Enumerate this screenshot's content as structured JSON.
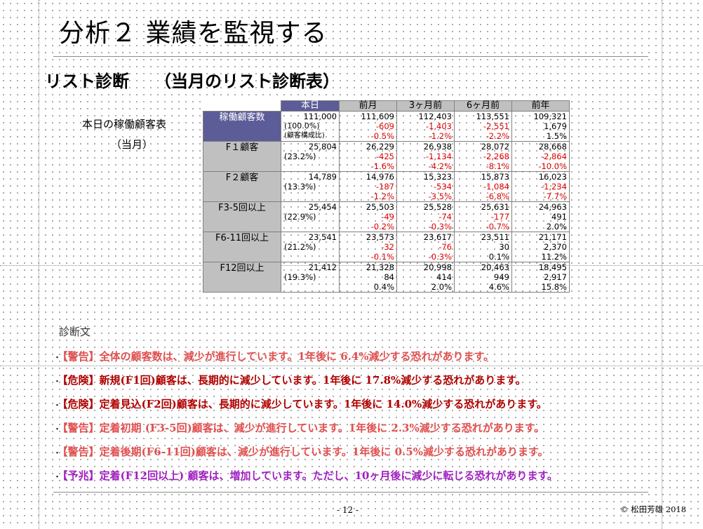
{
  "slide": {
    "title": "分析２ 業績を監視する",
    "subtitle": "リスト診断　　（当月のリスト診断表）",
    "side_label_1": "本日の稼働顧客表",
    "side_label_2": "（当月）",
    "diagnosis_heading": "診断文",
    "page_number": "- 12 -",
    "copyright": "© 松田芳雄 2018"
  },
  "table": {
    "headers": [
      "本日",
      "前月",
      "3ヶ月前",
      "6ヶ月前",
      "前年"
    ],
    "groups": [
      {
        "label": "稼働顧客数",
        "rows": [
          {
            "today": "111,000",
            "vals": [
              "111,609",
              "112,403",
              "113,551",
              "109,321"
            ]
          },
          {
            "today": "(100.0%)",
            "vals": [
              "-609",
              "-1,403",
              "-2,551",
              "1,679"
            ]
          },
          {
            "today": "(顧客構成比)",
            "vals": [
              "-0.5%",
              "-1.2%",
              "-2.2%",
              "1.5%"
            ]
          }
        ]
      },
      {
        "label": "F１顧客",
        "rows": [
          {
            "today": "25,804",
            "vals": [
              "26,229",
              "26,938",
              "28,072",
              "28,668"
            ]
          },
          {
            "today": "(23.2%)",
            "vals": [
              "-425",
              "-1,134",
              "-2,268",
              "-2,864"
            ]
          },
          {
            "today": "",
            "vals": [
              "-1.6%",
              "-4.2%",
              "-8.1%",
              "-10.0%"
            ]
          }
        ]
      },
      {
        "label": "F２顧客",
        "rows": [
          {
            "today": "14,789",
            "vals": [
              "14,976",
              "15,323",
              "15,873",
              "16,023"
            ]
          },
          {
            "today": "(13.3%)",
            "vals": [
              "-187",
              "-534",
              "-1,084",
              "-1,234"
            ]
          },
          {
            "today": "",
            "vals": [
              "-1.2%",
              "-3.5%",
              "-6.8%",
              "-7.7%"
            ]
          }
        ]
      },
      {
        "label": "F3-5回以上",
        "rows": [
          {
            "today": "25,454",
            "vals": [
              "25,503",
              "25,528",
              "25,631",
              "24,963"
            ]
          },
          {
            "today": "(22.9%)",
            "vals": [
              "-49",
              "-74",
              "-177",
              "491"
            ]
          },
          {
            "today": "",
            "vals": [
              "-0.2%",
              "-0.3%",
              "-0.7%",
              "2.0%"
            ]
          }
        ]
      },
      {
        "label": "F6-11回以上",
        "rows": [
          {
            "today": "23,541",
            "vals": [
              "23,573",
              "23,617",
              "23,511",
              "21,171"
            ]
          },
          {
            "today": "(21.2%)",
            "vals": [
              "-32",
              "-76",
              "30",
              "2,370"
            ]
          },
          {
            "today": "",
            "vals": [
              "-0.1%",
              "-0.3%",
              "0.1%",
              "11.2%"
            ]
          }
        ]
      },
      {
        "label": "F12回以上",
        "rows": [
          {
            "today": "21,412",
            "vals": [
              "21,328",
              "20,998",
              "20,463",
              "18,495"
            ]
          },
          {
            "today": "(19.3%)",
            "vals": [
              "84",
              "414",
              "949",
              "2,917"
            ]
          },
          {
            "today": "",
            "vals": [
              "0.4%",
              "2.0%",
              "4.6%",
              "15.8%"
            ]
          }
        ]
      }
    ]
  },
  "messages": [
    {
      "text": "【警告】全体の顧客数は、減少が進行しています。1年後に 6.4%減少する恐れがあります。",
      "color": "#e05050"
    },
    {
      "text": "【危険】新規(F1回)顧客は、長期的に減少しています。1年後に 17.8%減少する恐れがあります。",
      "color": "#b00000"
    },
    {
      "text": "【危険】定着見込(F2回)顧客は、長期的に減少しています。1年後に 14.0%減少する恐れがあります。",
      "color": "#b00000"
    },
    {
      "text": "【警告】定着初期 (F3-5回)顧客は、減少が進行しています。1年後に 2.3%減少する恐れがあります。",
      "color": "#e05050"
    },
    {
      "text": "【警告】定着後期(F6-11回)顧客は、減少が進行しています。1年後に 0.5%減少する恐れがあります。",
      "color": "#e05050"
    },
    {
      "text": "【予兆】定着(F12回以上) 顧客は、増加しています。ただし、10ヶ月後に減少に転じる恐れがあります。",
      "color": "#a020c0"
    }
  ],
  "colors": {
    "header_today_bg": "#5c5c99",
    "header_bg": "#c0c0c0",
    "negative_text": "#e00000"
  }
}
